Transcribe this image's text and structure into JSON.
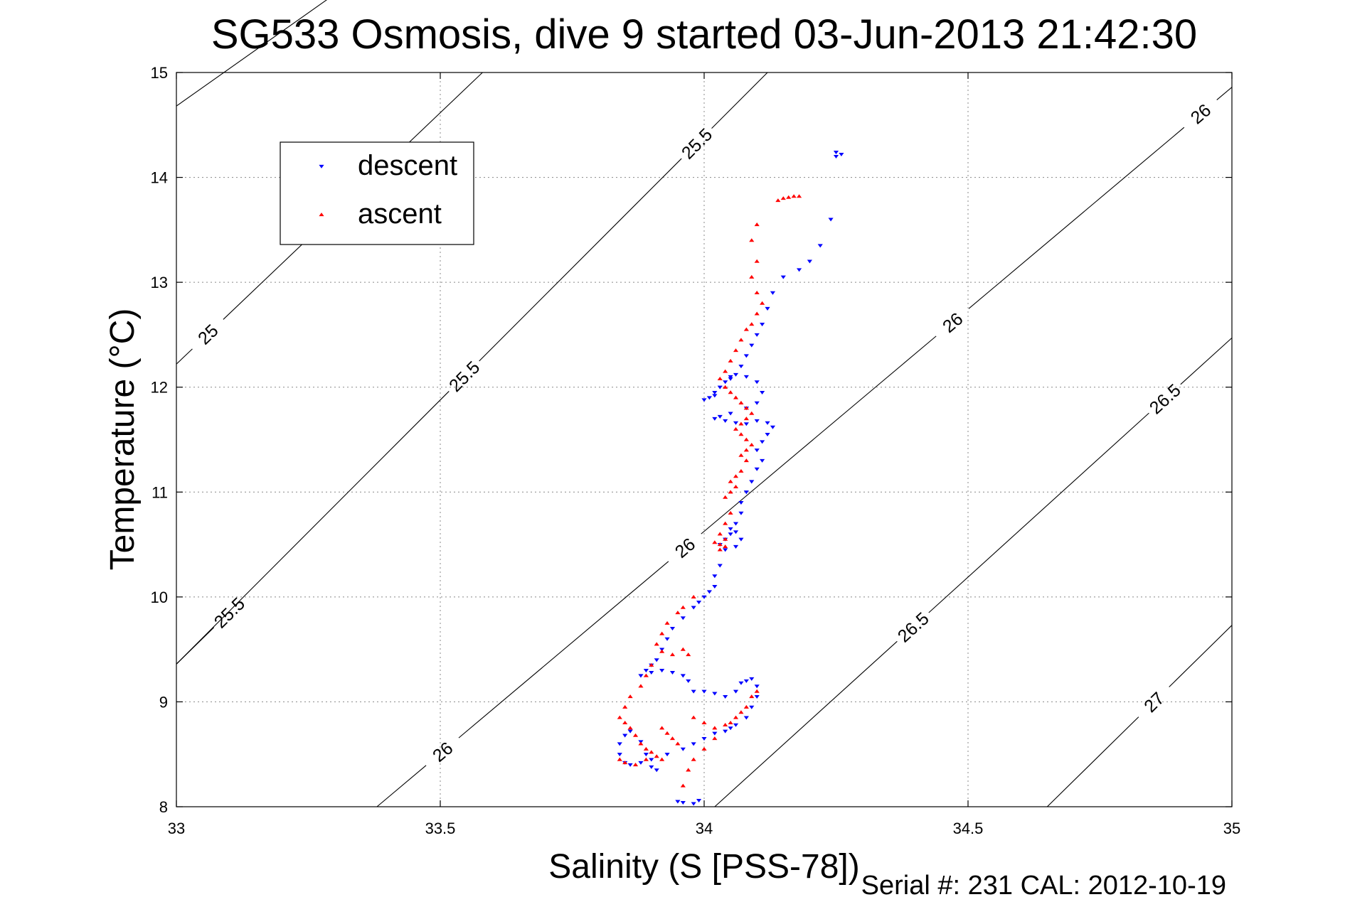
{
  "chart_data": {
    "type": "scatter",
    "title": "SG533 Osmosis, dive 9 started 03-Jun-2013 21:42:30",
    "xlabel": "Salinity (S [PSS-78])",
    "ylabel": "Temperature (°C)",
    "xlim": [
      33,
      35
    ],
    "ylim": [
      8,
      15
    ],
    "xticks": [
      "33",
      "33.5",
      "34",
      "34.5",
      "35"
    ],
    "yticks": [
      "8",
      "9",
      "10",
      "11",
      "12",
      "13",
      "14",
      "15"
    ],
    "grid": true,
    "legend_position": "top-left",
    "footer": "Serial #: 231  CAL: 2012-10-19",
    "contours": [
      {
        "level": 25,
        "labels": [
          "25",
          "25"
        ]
      },
      {
        "level": 25.5,
        "labels": [
          "25.5",
          "25.5",
          "25.5"
        ]
      },
      {
        "level": 26,
        "labels": [
          "26",
          "26",
          "26",
          "26"
        ]
      },
      {
        "level": 26.5,
        "labels": [
          "26.5",
          "26.5"
        ]
      },
      {
        "level": 27,
        "labels": [
          "27"
        ]
      }
    ],
    "series": [
      {
        "name": "descent",
        "color": "#0000ff",
        "marker": "triangle-down",
        "points": [
          [
            34.25,
            14.24
          ],
          [
            34.26,
            14.22
          ],
          [
            34.25,
            14.2
          ],
          [
            34.24,
            13.6
          ],
          [
            34.22,
            13.35
          ],
          [
            34.2,
            13.2
          ],
          [
            34.18,
            13.12
          ],
          [
            34.15,
            13.05
          ],
          [
            34.13,
            12.9
          ],
          [
            34.12,
            12.75
          ],
          [
            34.11,
            12.6
          ],
          [
            34.1,
            12.5
          ],
          [
            34.09,
            12.4
          ],
          [
            34.08,
            12.3
          ],
          [
            34.07,
            12.2
          ],
          [
            34.06,
            12.12
          ],
          [
            34.05,
            12.08
          ],
          [
            34.04,
            12.05
          ],
          [
            34.03,
            12.0
          ],
          [
            34.02,
            11.95
          ],
          [
            34.01,
            11.9
          ],
          [
            34.0,
            11.88
          ],
          [
            34.02,
            11.92
          ],
          [
            34.05,
            12.1
          ],
          [
            34.08,
            12.1
          ],
          [
            34.1,
            12.05
          ],
          [
            34.11,
            11.95
          ],
          [
            34.1,
            11.85
          ],
          [
            34.08,
            11.8
          ],
          [
            34.05,
            11.75
          ],
          [
            34.03,
            11.72
          ],
          [
            34.02,
            11.7
          ],
          [
            34.04,
            11.68
          ],
          [
            34.06,
            11.66
          ],
          [
            34.08,
            11.65
          ],
          [
            34.1,
            11.68
          ],
          [
            34.12,
            11.66
          ],
          [
            34.13,
            11.62
          ],
          [
            34.12,
            11.55
          ],
          [
            34.11,
            11.48
          ],
          [
            34.1,
            11.4
          ],
          [
            34.11,
            11.3
          ],
          [
            34.1,
            11.22
          ],
          [
            34.09,
            11.1
          ],
          [
            34.08,
            11.0
          ],
          [
            34.07,
            10.9
          ],
          [
            34.07,
            10.8
          ],
          [
            34.06,
            10.7
          ],
          [
            34.05,
            10.6
          ],
          [
            34.04,
            10.55
          ],
          [
            34.03,
            10.5
          ],
          [
            34.04,
            10.45
          ],
          [
            34.06,
            10.48
          ],
          [
            34.07,
            10.55
          ],
          [
            34.06,
            10.62
          ],
          [
            34.05,
            10.65
          ],
          [
            34.03,
            10.3
          ],
          [
            34.02,
            10.2
          ],
          [
            34.02,
            10.1
          ],
          [
            34.01,
            10.05
          ],
          [
            34.0,
            10.0
          ],
          [
            33.99,
            9.95
          ],
          [
            33.98,
            9.9
          ],
          [
            33.96,
            9.8
          ],
          [
            33.94,
            9.7
          ],
          [
            33.93,
            9.6
          ],
          [
            33.92,
            9.5
          ],
          [
            33.91,
            9.4
          ],
          [
            33.9,
            9.35
          ],
          [
            33.89,
            9.3
          ],
          [
            33.88,
            9.25
          ],
          [
            33.9,
            9.28
          ],
          [
            33.92,
            9.3
          ],
          [
            33.94,
            9.28
          ],
          [
            33.96,
            9.25
          ],
          [
            33.97,
            9.2
          ],
          [
            33.98,
            9.1
          ],
          [
            34.0,
            9.1
          ],
          [
            34.02,
            9.08
          ],
          [
            34.04,
            9.05
          ],
          [
            34.06,
            9.1
          ],
          [
            34.07,
            9.18
          ],
          [
            34.08,
            9.2
          ],
          [
            34.09,
            9.22
          ],
          [
            34.1,
            9.15
          ],
          [
            34.1,
            9.05
          ],
          [
            34.09,
            8.95
          ],
          [
            34.08,
            8.85
          ],
          [
            34.06,
            8.78
          ],
          [
            34.05,
            8.75
          ],
          [
            34.04,
            8.72
          ],
          [
            34.02,
            8.7
          ],
          [
            34.0,
            8.65
          ],
          [
            33.98,
            8.6
          ],
          [
            33.96,
            8.55
          ],
          [
            33.93,
            8.5
          ],
          [
            33.9,
            8.45
          ],
          [
            33.88,
            8.42
          ],
          [
            33.86,
            8.4
          ],
          [
            33.85,
            8.42
          ],
          [
            33.84,
            8.5
          ],
          [
            33.84,
            8.6
          ],
          [
            33.85,
            8.68
          ],
          [
            33.86,
            8.72
          ],
          [
            33.88,
            8.62
          ],
          [
            33.89,
            8.5
          ],
          [
            33.9,
            8.38
          ],
          [
            33.91,
            8.35
          ],
          [
            33.95,
            8.05
          ],
          [
            33.96,
            8.04
          ],
          [
            33.98,
            8.03
          ],
          [
            33.99,
            8.06
          ]
        ]
      },
      {
        "name": "ascent",
        "color": "#ff0000",
        "marker": "triangle-up",
        "points": [
          [
            34.18,
            13.82
          ],
          [
            34.17,
            13.82
          ],
          [
            34.16,
            13.81
          ],
          [
            34.15,
            13.8
          ],
          [
            34.14,
            13.78
          ],
          [
            34.1,
            13.55
          ],
          [
            34.09,
            13.4
          ],
          [
            34.1,
            13.2
          ],
          [
            34.09,
            13.05
          ],
          [
            34.1,
            12.9
          ],
          [
            34.11,
            12.8
          ],
          [
            34.1,
            12.7
          ],
          [
            34.09,
            12.6
          ],
          [
            34.08,
            12.55
          ],
          [
            34.07,
            12.45
          ],
          [
            34.06,
            12.35
          ],
          [
            34.05,
            12.25
          ],
          [
            34.04,
            12.15
          ],
          [
            34.03,
            12.08
          ],
          [
            34.04,
            12.0
          ],
          [
            34.05,
            11.95
          ],
          [
            34.06,
            11.9
          ],
          [
            34.07,
            11.85
          ],
          [
            34.08,
            11.8
          ],
          [
            34.09,
            11.75
          ],
          [
            34.08,
            11.7
          ],
          [
            34.07,
            11.65
          ],
          [
            34.06,
            11.6
          ],
          [
            34.07,
            11.55
          ],
          [
            34.08,
            11.5
          ],
          [
            34.09,
            11.45
          ],
          [
            34.08,
            11.4
          ],
          [
            34.07,
            11.35
          ],
          [
            34.08,
            11.3
          ],
          [
            34.07,
            11.2
          ],
          [
            34.06,
            11.15
          ],
          [
            34.05,
            11.1
          ],
          [
            34.06,
            11.05
          ],
          [
            34.05,
            11.0
          ],
          [
            34.04,
            10.95
          ],
          [
            34.05,
            10.8
          ],
          [
            34.04,
            10.7
          ],
          [
            34.03,
            10.6
          ],
          [
            34.04,
            10.55
          ],
          [
            34.03,
            10.5
          ],
          [
            34.02,
            10.52
          ],
          [
            34.03,
            10.45
          ],
          [
            34.04,
            10.48
          ],
          [
            33.98,
            10.0
          ],
          [
            33.96,
            9.9
          ],
          [
            33.95,
            9.85
          ],
          [
            33.93,
            9.75
          ],
          [
            33.92,
            9.65
          ],
          [
            33.91,
            9.55
          ],
          [
            33.92,
            9.48
          ],
          [
            33.94,
            9.45
          ],
          [
            33.96,
            9.5
          ],
          [
            33.97,
            9.45
          ],
          [
            33.9,
            9.35
          ],
          [
            33.89,
            9.25
          ],
          [
            33.88,
            9.15
          ],
          [
            33.86,
            9.05
          ],
          [
            33.85,
            8.95
          ],
          [
            33.84,
            8.85
          ],
          [
            33.85,
            8.8
          ],
          [
            33.86,
            8.75
          ],
          [
            33.87,
            8.68
          ],
          [
            33.88,
            8.6
          ],
          [
            33.89,
            8.55
          ],
          [
            33.9,
            8.52
          ],
          [
            33.91,
            8.48
          ],
          [
            33.92,
            8.45
          ],
          [
            33.89,
            8.45
          ],
          [
            33.87,
            8.4
          ],
          [
            33.85,
            8.42
          ],
          [
            33.84,
            8.45
          ],
          [
            33.92,
            8.75
          ],
          [
            33.93,
            8.7
          ],
          [
            33.94,
            8.65
          ],
          [
            33.95,
            8.6
          ],
          [
            33.98,
            8.85
          ],
          [
            34.0,
            8.8
          ],
          [
            34.02,
            8.75
          ],
          [
            34.04,
            8.78
          ],
          [
            34.06,
            8.85
          ],
          [
            34.08,
            8.95
          ],
          [
            34.09,
            9.05
          ],
          [
            34.1,
            9.1
          ],
          [
            34.07,
            8.9
          ],
          [
            34.05,
            8.8
          ],
          [
            34.02,
            8.65
          ],
          [
            34.0,
            8.55
          ],
          [
            33.98,
            8.45
          ],
          [
            33.97,
            8.35
          ],
          [
            33.96,
            8.2
          ]
        ]
      }
    ]
  }
}
